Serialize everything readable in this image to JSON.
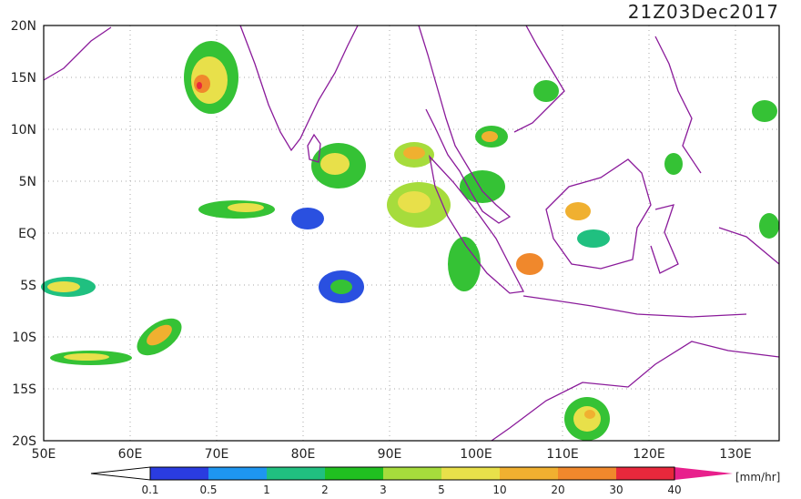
{
  "header": {
    "title": "21Z03Dec2017"
  },
  "map": {
    "lat_labels": [
      "20N",
      "15N",
      "10N",
      "5N",
      "EQ",
      "5S",
      "10S",
      "15S",
      "20S"
    ],
    "lon_labels": [
      "50E",
      "60E",
      "70E",
      "80E",
      "90E",
      "100E",
      "110E",
      "120E",
      "130E"
    ]
  },
  "colorbar": {
    "labels": [
      "0.1",
      "0.5",
      "1",
      "2",
      "3",
      "5",
      "10",
      "20",
      "30",
      "40"
    ],
    "unit": "[mm/hr]"
  }
}
